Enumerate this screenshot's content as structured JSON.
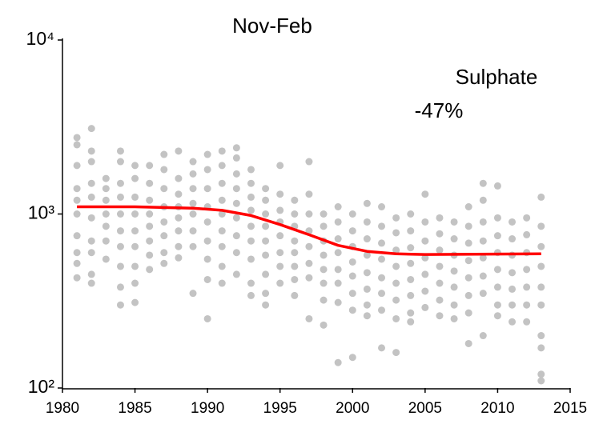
{
  "chart_data": {
    "type": "scatter",
    "title": "Nov-Feb",
    "annotations": [
      "Sulphate",
      "-47%"
    ],
    "ylog": true,
    "xlim": [
      1980,
      2015
    ],
    "ylim": [
      100,
      10000
    ],
    "xticks": [
      1980,
      1985,
      1990,
      1995,
      2000,
      2005,
      2010,
      2015
    ],
    "yticks": [
      {
        "value": 100,
        "label": "10²"
      },
      {
        "value": 1000,
        "label": "10³"
      },
      {
        "value": 10000,
        "label": "10⁴"
      }
    ],
    "series": [
      {
        "type": "scatter",
        "color": "#c3c3c3",
        "x": [
          1981,
          1981,
          1981,
          1981,
          1981,
          1981,
          1981,
          1981,
          1981,
          1981,
          1982,
          1982,
          1982,
          1982,
          1982,
          1982,
          1982,
          1982,
          1982,
          1982,
          1983,
          1983,
          1983,
          1983,
          1983,
          1983,
          1983,
          1984,
          1984,
          1984,
          1984,
          1984,
          1984,
          1984,
          1984,
          1984,
          1984,
          1985,
          1985,
          1985,
          1985,
          1985,
          1985,
          1985,
          1985,
          1985,
          1986,
          1986,
          1986,
          1986,
          1986,
          1986,
          1986,
          1986,
          1987,
          1987,
          1987,
          1987,
          1987,
          1987,
          1987,
          1987,
          1988,
          1988,
          1988,
          1988,
          1988,
          1988,
          1988,
          1988,
          1989,
          1989,
          1989,
          1989,
          1989,
          1989,
          1989,
          1989,
          1990,
          1990,
          1990,
          1990,
          1990,
          1990,
          1990,
          1990,
          1990,
          1991,
          1991,
          1991,
          1991,
          1991,
          1991,
          1991,
          1991,
          1991,
          1992,
          1992,
          1992,
          1992,
          1992,
          1992,
          1992,
          1992,
          1992,
          1993,
          1993,
          1993,
          1993,
          1993,
          1993,
          1993,
          1993,
          1993,
          1994,
          1994,
          1994,
          1994,
          1994,
          1994,
          1994,
          1994,
          1994,
          1995,
          1995,
          1995,
          1995,
          1995,
          1995,
          1995,
          1995,
          1996,
          1996,
          1996,
          1996,
          1996,
          1996,
          1996,
          1996,
          1997,
          1997,
          1997,
          1997,
          1997,
          1997,
          1997,
          1997,
          1998,
          1998,
          1998,
          1998,
          1998,
          1998,
          1998,
          1998,
          1999,
          1999,
          1999,
          1999,
          1999,
          1999,
          1999,
          1999,
          2000,
          2000,
          2000,
          2000,
          2000,
          2000,
          2000,
          2000,
          2001,
          2001,
          2001,
          2001,
          2001,
          2001,
          2001,
          2001,
          2002,
          2002,
          2002,
          2002,
          2002,
          2002,
          2002,
          2002,
          2003,
          2003,
          2003,
          2003,
          2003,
          2003,
          2003,
          2003,
          2004,
          2004,
          2004,
          2004,
          2004,
          2004,
          2004,
          2004,
          2005,
          2005,
          2005,
          2005,
          2005,
          2005,
          2005,
          2006,
          2006,
          2006,
          2006,
          2006,
          2006,
          2006,
          2007,
          2007,
          2007,
          2007,
          2007,
          2007,
          2007,
          2008,
          2008,
          2008,
          2008,
          2008,
          2008,
          2008,
          2008,
          2009,
          2009,
          2009,
          2009,
          2009,
          2009,
          2009,
          2009,
          2010,
          2010,
          2010,
          2010,
          2010,
          2010,
          2010,
          2010,
          2011,
          2011,
          2011,
          2011,
          2011,
          2011,
          2011,
          2012,
          2012,
          2012,
          2012,
          2012,
          2012,
          2012,
          2013,
          2013,
          2013,
          2013,
          2013,
          2013,
          2013,
          2013,
          2013,
          2013
        ],
        "values": [
          2750,
          2500,
          1900,
          1400,
          1200,
          1000,
          750,
          600,
          520,
          430,
          3100,
          2300,
          2000,
          1500,
          1250,
          950,
          700,
          600,
          450,
          400,
          1600,
          1400,
          1200,
          1000,
          850,
          700,
          550,
          2300,
          2000,
          1500,
          1250,
          1000,
          800,
          650,
          500,
          380,
          300,
          1900,
          1600,
          1250,
          1000,
          800,
          650,
          500,
          400,
          310,
          1900,
          1500,
          1200,
          1000,
          850,
          700,
          580,
          480,
          2200,
          1800,
          1400,
          1100,
          900,
          750,
          600,
          520,
          2300,
          1600,
          1300,
          1100,
          950,
          800,
          650,
          560,
          2000,
          1700,
          1400,
          1150,
          1000,
          800,
          650,
          350,
          2200,
          1800,
          1400,
          1100,
          900,
          700,
          550,
          420,
          250,
          2300,
          1900,
          1500,
          1200,
          1000,
          800,
          650,
          500,
          400,
          2400,
          2100,
          1700,
          1400,
          1150,
          950,
          750,
          600,
          450,
          1800,
          1500,
          1250,
          1050,
          850,
          700,
          550,
          400,
          340,
          1400,
          1200,
          1000,
          850,
          700,
          580,
          450,
          350,
          300,
          1900,
          1300,
          1050,
          900,
          750,
          600,
          500,
          400,
          1200,
          1000,
          850,
          700,
          600,
          500,
          420,
          340,
          2000,
          1300,
          1000,
          800,
          650,
          520,
          430,
          250,
          1000,
          850,
          700,
          580,
          480,
          400,
          320,
          230,
          1100,
          900,
          720,
          600,
          480,
          400,
          310,
          140,
          1000,
          800,
          650,
          530,
          440,
          350,
          280,
          150,
          1150,
          900,
          720,
          580,
          460,
          370,
          300,
          260,
          1100,
          850,
          680,
          550,
          430,
          350,
          280,
          170,
          950,
          780,
          620,
          500,
          400,
          320,
          250,
          160,
          1000,
          800,
          640,
          520,
          420,
          340,
          270,
          240,
          1300,
          900,
          700,
          560,
          450,
          360,
          290,
          950,
          770,
          620,
          500,
          400,
          320,
          260,
          900,
          720,
          580,
          470,
          380,
          300,
          250,
          1100,
          850,
          680,
          540,
          430,
          340,
          270,
          180,
          1500,
          1200,
          900,
          700,
          560,
          440,
          350,
          200,
          1450,
          950,
          750,
          600,
          480,
          380,
          300,
          260,
          900,
          720,
          580,
          460,
          370,
          300,
          240,
          950,
          760,
          600,
          480,
          380,
          300,
          240,
          1250,
          850,
          650,
          500,
          380,
          300,
          200,
          170,
          120,
          110
        ]
      },
      {
        "type": "line",
        "color": "#ff0000",
        "x": [
          1981,
          1985,
          1989,
          1991,
          1993,
          1995,
          1997,
          1999,
          2001,
          2003,
          2005,
          2013
        ],
        "values": [
          1100,
          1100,
          1080,
          1050,
          980,
          870,
          760,
          660,
          610,
          590,
          585,
          590
        ]
      }
    ]
  }
}
